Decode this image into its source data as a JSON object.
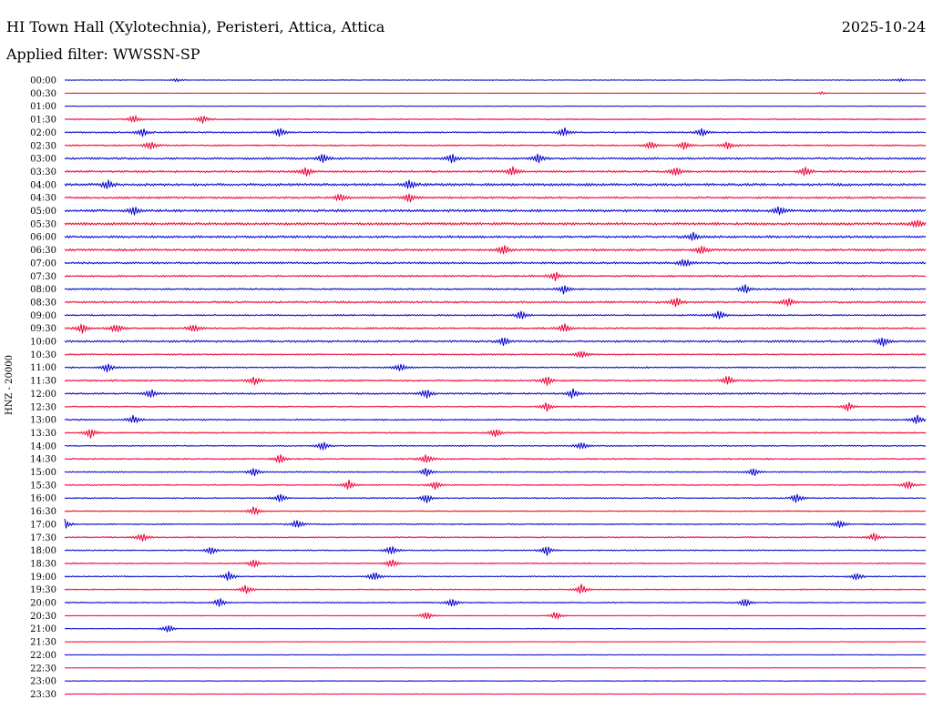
{
  "header": {
    "title": "HI Town Hall (Xylotechnia), Peristeri, Attica, Attica",
    "date": "2025-10-24",
    "filter": "Applied filter: WWSSN-SP"
  },
  "colors": {
    "trace_a": "#0000cc",
    "trace_b": "#ee0033",
    "text": "#000000",
    "background": "#ffffff"
  },
  "chart_data": {
    "type": "line",
    "title": "HI Town Hall (Xylotechnia), Peristeri, Attica, Attica",
    "subtitle": "Applied filter: WWSSN-SP",
    "ylabel": "HNZ - 20000",
    "xlabel": "",
    "grid": false,
    "legend": "none",
    "rows": [
      {
        "label": "00:00",
        "bursts": [
          [
            0.13,
            0.3
          ],
          [
            0.97,
            0.3
          ]
        ],
        "noise": 0.3
      },
      {
        "label": "00:30",
        "bursts": [
          [
            0.88,
            0.3
          ]
        ],
        "noise": 0.2
      },
      {
        "label": "01:00",
        "bursts": [],
        "noise": 0.3
      },
      {
        "label": "01:30",
        "bursts": [
          [
            0.08,
            1.0
          ],
          [
            0.16,
            1.0
          ]
        ],
        "noise": 0.5
      },
      {
        "label": "02:00",
        "bursts": [
          [
            0.09,
            1.0
          ],
          [
            0.25,
            1.0
          ],
          [
            0.58,
            1.0
          ],
          [
            0.74,
            1.0
          ]
        ],
        "noise": 0.6
      },
      {
        "label": "02:30",
        "bursts": [
          [
            0.1,
            1.0
          ],
          [
            0.68,
            1.0
          ],
          [
            0.72,
            1.0
          ],
          [
            0.77,
            1.0
          ]
        ],
        "noise": 0.6
      },
      {
        "label": "03:00",
        "bursts": [
          [
            0.3,
            1.0
          ],
          [
            0.45,
            1.0
          ],
          [
            0.55,
            1.0
          ]
        ],
        "noise": 0.8
      },
      {
        "label": "03:30",
        "bursts": [
          [
            0.28,
            1.0
          ],
          [
            0.52,
            1.0
          ],
          [
            0.71,
            1.0
          ],
          [
            0.86,
            1.0
          ]
        ],
        "noise": 0.8
      },
      {
        "label": "04:00",
        "bursts": [
          [
            0.05,
            1.0
          ],
          [
            0.4,
            1.0
          ]
        ],
        "noise": 1.0
      },
      {
        "label": "04:30",
        "bursts": [
          [
            0.32,
            1.0
          ],
          [
            0.4,
            1.0
          ]
        ],
        "noise": 0.8
      },
      {
        "label": "05:00",
        "bursts": [
          [
            0.08,
            1.0
          ],
          [
            0.83,
            1.0
          ]
        ],
        "noise": 1.0
      },
      {
        "label": "05:30",
        "bursts": [
          [
            0.99,
            1.0
          ]
        ],
        "noise": 1.0
      },
      {
        "label": "06:00",
        "bursts": [
          [
            0.73,
            1.0
          ]
        ],
        "noise": 0.9
      },
      {
        "label": "06:30",
        "bursts": [
          [
            0.51,
            1.0
          ],
          [
            0.74,
            1.0
          ]
        ],
        "noise": 0.9
      },
      {
        "label": "07:00",
        "bursts": [
          [
            0.72,
            1.0
          ]
        ],
        "noise": 0.8
      },
      {
        "label": "07:30",
        "bursts": [
          [
            0.57,
            1.0
          ]
        ],
        "noise": 0.7
      },
      {
        "label": "08:00",
        "bursts": [
          [
            0.58,
            1.0
          ],
          [
            0.79,
            1.0
          ]
        ],
        "noise": 0.7
      },
      {
        "label": "08:30",
        "bursts": [
          [
            0.71,
            1.0
          ],
          [
            0.84,
            1.0
          ]
        ],
        "noise": 0.8
      },
      {
        "label": "09:00",
        "bursts": [
          [
            0.53,
            1.0
          ],
          [
            0.76,
            1.0
          ]
        ],
        "noise": 0.6
      },
      {
        "label": "09:30",
        "bursts": [
          [
            0.02,
            1.0
          ],
          [
            0.06,
            1.0
          ],
          [
            0.15,
            1.0
          ],
          [
            0.58,
            1.0
          ]
        ],
        "noise": 0.7
      },
      {
        "label": "10:00",
        "bursts": [
          [
            0.51,
            1.0
          ],
          [
            0.95,
            1.0
          ]
        ],
        "noise": 0.8
      },
      {
        "label": "10:30",
        "bursts": [
          [
            0.6,
            1.0
          ]
        ],
        "noise": 0.6
      },
      {
        "label": "11:00",
        "bursts": [
          [
            0.05,
            1.0
          ],
          [
            0.39,
            1.0
          ]
        ],
        "noise": 0.6
      },
      {
        "label": "11:30",
        "bursts": [
          [
            0.22,
            1.0
          ],
          [
            0.56,
            1.0
          ],
          [
            0.77,
            1.0
          ]
        ],
        "noise": 0.7
      },
      {
        "label": "12:00",
        "bursts": [
          [
            0.1,
            1.0
          ],
          [
            0.42,
            1.0
          ],
          [
            0.59,
            1.0
          ]
        ],
        "noise": 0.7
      },
      {
        "label": "12:30",
        "bursts": [
          [
            0.56,
            1.0
          ],
          [
            0.91,
            1.0
          ]
        ],
        "noise": 0.5
      },
      {
        "label": "13:00",
        "bursts": [
          [
            0.08,
            1.0
          ],
          [
            0.99,
            1.0
          ]
        ],
        "noise": 0.6
      },
      {
        "label": "13:30",
        "bursts": [
          [
            0.03,
            1.0
          ],
          [
            0.5,
            1.0
          ]
        ],
        "noise": 0.6
      },
      {
        "label": "14:00",
        "bursts": [
          [
            0.3,
            1.0
          ],
          [
            0.6,
            1.0
          ]
        ],
        "noise": 0.5
      },
      {
        "label": "14:30",
        "bursts": [
          [
            0.25,
            1.0
          ],
          [
            0.42,
            1.0
          ]
        ],
        "noise": 0.6
      },
      {
        "label": "15:00",
        "bursts": [
          [
            0.22,
            1.0
          ],
          [
            0.42,
            1.0
          ],
          [
            0.8,
            1.0
          ]
        ],
        "noise": 0.5
      },
      {
        "label": "15:30",
        "bursts": [
          [
            0.33,
            1.0
          ],
          [
            0.43,
            1.0
          ],
          [
            0.98,
            1.0
          ]
        ],
        "noise": 0.5
      },
      {
        "label": "16:00",
        "bursts": [
          [
            0.25,
            1.0
          ],
          [
            0.42,
            1.0
          ],
          [
            0.85,
            1.0
          ]
        ],
        "noise": 0.5
      },
      {
        "label": "16:30",
        "bursts": [
          [
            0.22,
            1.0
          ]
        ],
        "noise": 0.5
      },
      {
        "label": "17:00",
        "bursts": [
          [
            0.0,
            1.0
          ],
          [
            0.27,
            1.0
          ],
          [
            0.9,
            1.0
          ]
        ],
        "noise": 0.5
      },
      {
        "label": "17:30",
        "bursts": [
          [
            0.09,
            1.0
          ],
          [
            0.94,
            1.0
          ]
        ],
        "noise": 0.5
      },
      {
        "label": "18:00",
        "bursts": [
          [
            0.17,
            1.0
          ],
          [
            0.38,
            1.0
          ],
          [
            0.56,
            1.0
          ]
        ],
        "noise": 0.5
      },
      {
        "label": "18:30",
        "bursts": [
          [
            0.22,
            1.0
          ],
          [
            0.38,
            1.0
          ]
        ],
        "noise": 0.5
      },
      {
        "label": "19:00",
        "bursts": [
          [
            0.19,
            1.0
          ],
          [
            0.36,
            1.0
          ],
          [
            0.92,
            1.0
          ]
        ],
        "noise": 0.5
      },
      {
        "label": "19:30",
        "bursts": [
          [
            0.21,
            1.0
          ],
          [
            0.6,
            1.0
          ]
        ],
        "noise": 0.5
      },
      {
        "label": "20:00",
        "bursts": [
          [
            0.18,
            1.0
          ],
          [
            0.45,
            1.0
          ],
          [
            0.79,
            1.0
          ]
        ],
        "noise": 0.5
      },
      {
        "label": "20:30",
        "bursts": [
          [
            0.42,
            1.0
          ],
          [
            0.57,
            1.0
          ]
        ],
        "noise": 0.3
      },
      {
        "label": "21:00",
        "bursts": [
          [
            0.12,
            1.0
          ]
        ],
        "noise": 0.3
      },
      {
        "label": "21:30",
        "bursts": [],
        "noise": 0.2
      },
      {
        "label": "22:00",
        "bursts": [],
        "noise": 0.3
      },
      {
        "label": "22:30",
        "bursts": [],
        "noise": 0.2
      },
      {
        "label": "23:00",
        "bursts": [],
        "noise": 0.3
      },
      {
        "label": "23:30",
        "bursts": [],
        "noise": 0.3
      }
    ]
  }
}
